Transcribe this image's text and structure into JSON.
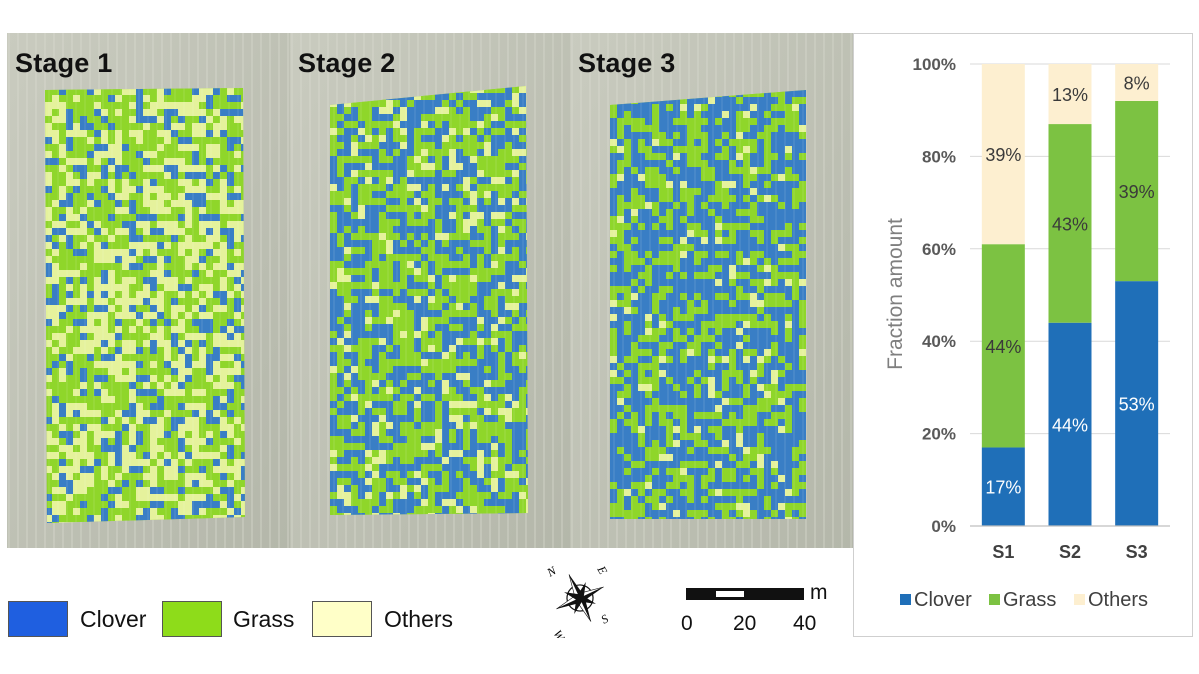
{
  "maps": {
    "stages": [
      {
        "label": "Stage 1",
        "clover": 0.17,
        "grass": 0.44,
        "others": 0.39
      },
      {
        "label": "Stage 2",
        "clover": 0.44,
        "grass": 0.43,
        "others": 0.13
      },
      {
        "label": "Stage 3",
        "clover": 0.53,
        "grass": 0.39,
        "others": 0.08
      }
    ],
    "legend": [
      {
        "label": "Clover",
        "color": "#1f5fe0"
      },
      {
        "label": "Grass",
        "color": "#8edc1a"
      },
      {
        "label": "Others",
        "color": "#ffffc8"
      }
    ],
    "compass_letters": {
      "n": "N",
      "e": "E",
      "s": "S",
      "w": "W"
    },
    "scale_bar": {
      "unit": "m",
      "ticks": [
        "0",
        "20",
        "40"
      ]
    }
  },
  "chart_data": {
    "type": "bar",
    "stacked": true,
    "categories": [
      "S1",
      "S2",
      "S3"
    ],
    "series": [
      {
        "name": "Clover",
        "color": "#1f6fb8",
        "label_color": "#ffffff",
        "values": [
          17,
          44,
          53
        ],
        "labels": [
          "17%",
          "44%",
          "53%"
        ]
      },
      {
        "name": "Grass",
        "color": "#7cc242",
        "label_color": "#3a3a3a",
        "values": [
          44,
          43,
          39
        ],
        "labels": [
          "44%",
          "43%",
          "39%"
        ]
      },
      {
        "name": "Others",
        "color": "#fdefd0",
        "label_color": "#3a3a3a",
        "values": [
          39,
          13,
          8
        ],
        "labels": [
          "39%",
          "13%",
          "8%"
        ]
      }
    ],
    "ylabel": "Fraction amount",
    "ylim": [
      0,
      100
    ],
    "yticks": [
      "0%",
      "20%",
      "40%",
      "60%",
      "80%",
      "100%"
    ],
    "grid": true,
    "legend_position": "bottom"
  }
}
